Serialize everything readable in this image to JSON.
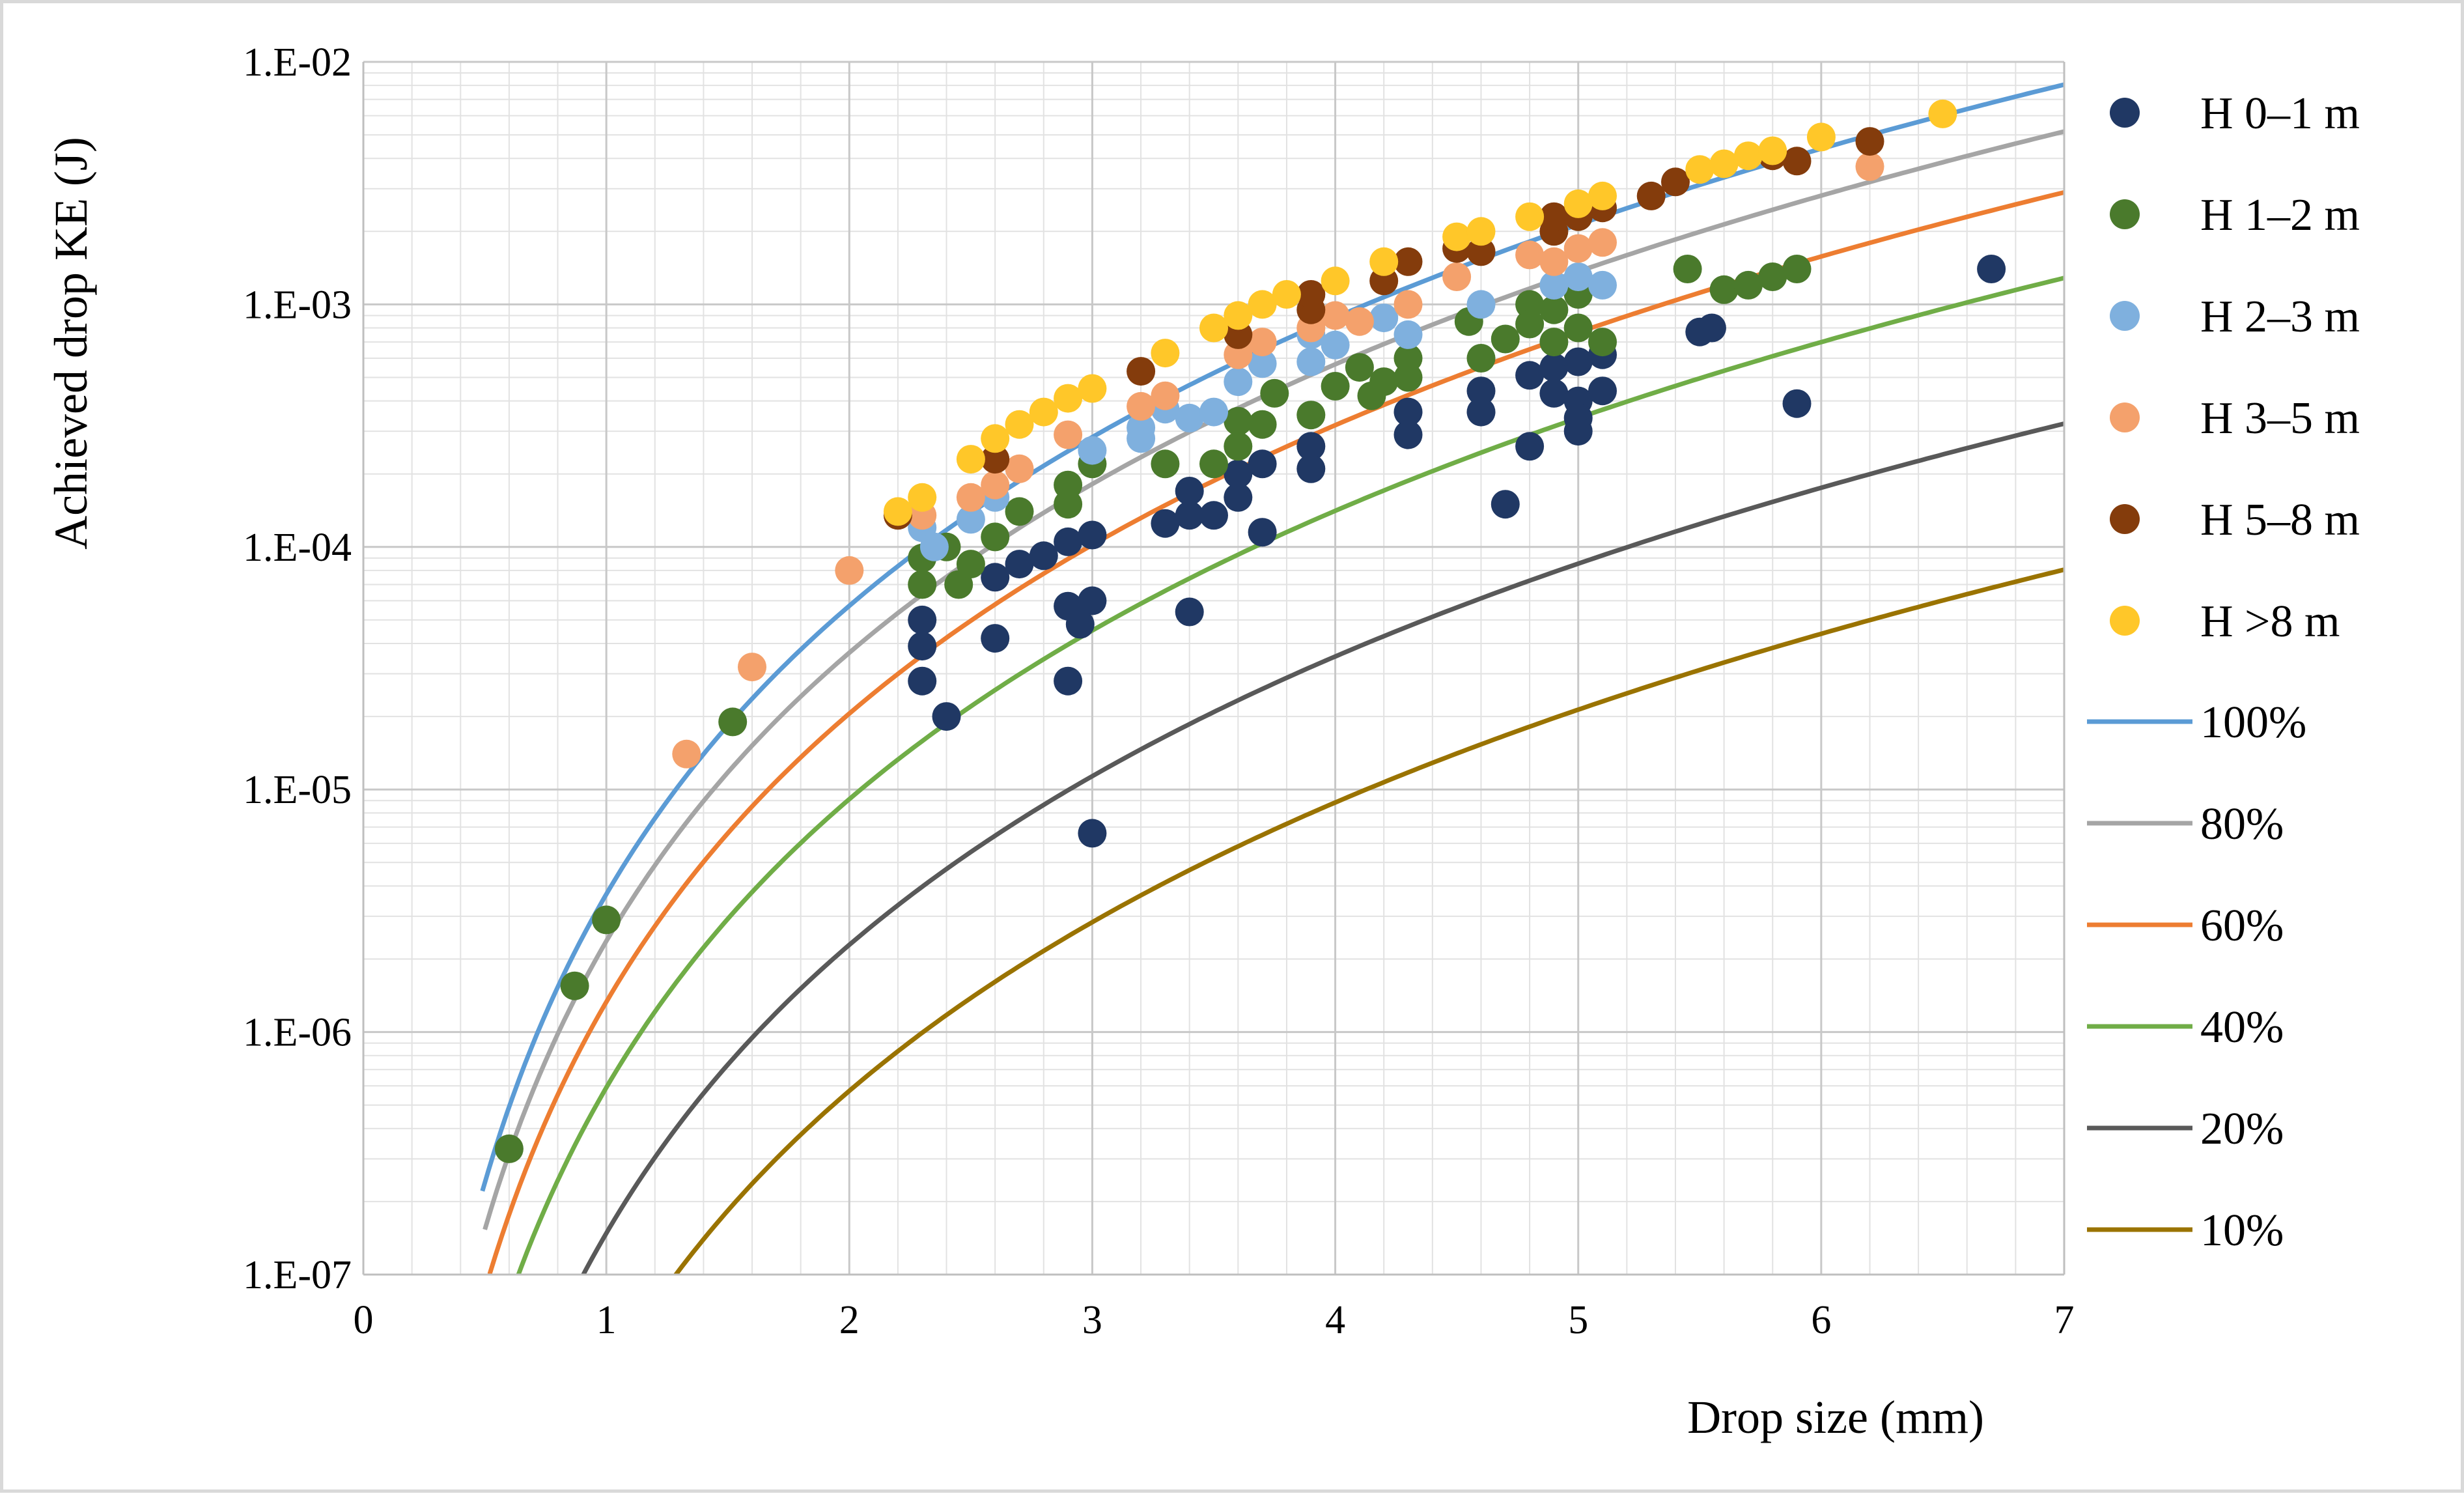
{
  "chart_data": {
    "type": "scatter",
    "xlabel": "Drop size (mm)",
    "ylabel": "Achieved drop KE (J)",
    "xlim": [
      0,
      7
    ],
    "ylim_log10": [
      -7,
      -2
    ],
    "x_ticks": [
      0,
      1,
      2,
      3,
      4,
      5,
      6,
      7
    ],
    "x_tick_labels": [
      "0",
      "1",
      "2",
      "3",
      "4",
      "5",
      "6",
      "7"
    ],
    "y_ticks_log10": [
      -7,
      -6,
      -5,
      -4,
      -3,
      -2
    ],
    "y_tick_labels": [
      "1.E-07",
      "1.E-06",
      "1.E-05",
      "1.E-04",
      "1.E-03",
      "1.E-02"
    ],
    "grid": true,
    "legend_position": "right",
    "scatter_series": [
      {
        "name": "H 0–1 m",
        "color": "#203864",
        "points": [
          [
            2.3,
            5e-05
          ],
          [
            2.3,
            3.9e-05
          ],
          [
            2.3,
            2.8e-05
          ],
          [
            2.4,
            2e-05
          ],
          [
            2.6,
            7.5e-05
          ],
          [
            2.6,
            4.2e-05
          ],
          [
            2.7,
            8.5e-05
          ],
          [
            2.8,
            9.2e-05
          ],
          [
            2.9,
            0.000105
          ],
          [
            2.9,
            5.7e-05
          ],
          [
            2.9,
            2.8e-05
          ],
          [
            3.0,
            0.000112
          ],
          [
            3.0,
            6e-05
          ],
          [
            2.95,
            4.8e-05
          ],
          [
            3.0,
            6.6e-06
          ],
          [
            3.3,
            0.000125
          ],
          [
            3.4,
            0.00017
          ],
          [
            3.4,
            0.000135
          ],
          [
            3.4,
            5.4e-05
          ],
          [
            3.5,
            0.000135
          ],
          [
            3.6,
            0.0002
          ],
          [
            3.6,
            0.00016
          ],
          [
            3.7,
            0.000115
          ],
          [
            3.7,
            0.00022
          ],
          [
            3.9,
            0.00026
          ],
          [
            3.9,
            0.00021
          ],
          [
            4.3,
            0.00036
          ],
          [
            4.3,
            0.00029
          ],
          [
            4.6,
            0.00044
          ],
          [
            4.6,
            0.00036
          ],
          [
            4.7,
            0.00015
          ],
          [
            4.8,
            0.00051
          ],
          [
            4.8,
            0.00026
          ],
          [
            4.9,
            0.00055
          ],
          [
            4.9,
            0.00043
          ],
          [
            5.0,
            0.00058
          ],
          [
            5.0,
            0.0004
          ],
          [
            5.0,
            0.00034
          ],
          [
            5.0,
            0.0003
          ],
          [
            5.1,
            0.00062
          ],
          [
            5.1,
            0.00044
          ],
          [
            5.5,
            0.00077
          ],
          [
            5.55,
            0.0008
          ],
          [
            5.9,
            0.00039
          ],
          [
            6.7,
            0.0014
          ]
        ]
      },
      {
        "name": "H 1–2 m",
        "color": "#4a7a2c",
        "points": [
          [
            0.6,
            3.3e-07
          ],
          [
            0.87,
            1.55e-06
          ],
          [
            1.0,
            2.9e-06
          ],
          [
            1.52,
            1.9e-05
          ],
          [
            2.3,
            9e-05
          ],
          [
            2.3,
            7e-05
          ],
          [
            2.4,
            0.0001
          ],
          [
            2.45,
            7e-05
          ],
          [
            2.5,
            8.5e-05
          ],
          [
            2.6,
            0.00011
          ],
          [
            2.7,
            0.00014
          ],
          [
            2.9,
            0.00015
          ],
          [
            2.9,
            0.00018
          ],
          [
            3.0,
            0.00022
          ],
          [
            3.3,
            0.00022
          ],
          [
            3.5,
            0.00022
          ],
          [
            3.6,
            0.00026
          ],
          [
            3.6,
            0.00033
          ],
          [
            3.7,
            0.00032
          ],
          [
            3.75,
            0.00043
          ],
          [
            3.9,
            0.00035
          ],
          [
            4.0,
            0.00046
          ],
          [
            4.1,
            0.00055
          ],
          [
            4.15,
            0.00042
          ],
          [
            4.2,
            0.00048
          ],
          [
            4.3,
            0.0005
          ],
          [
            4.3,
            0.0006
          ],
          [
            4.55,
            0.00085
          ],
          [
            4.6,
            0.0006
          ],
          [
            4.7,
            0.00072
          ],
          [
            4.8,
            0.001
          ],
          [
            4.8,
            0.00083
          ],
          [
            4.9,
            0.00095
          ],
          [
            4.9,
            0.0007
          ],
          [
            5.0,
            0.0008
          ],
          [
            5.0,
            0.0011
          ],
          [
            5.1,
            0.0007
          ],
          [
            5.45,
            0.0014
          ],
          [
            5.6,
            0.00115
          ],
          [
            5.7,
            0.0012
          ],
          [
            5.8,
            0.0013
          ],
          [
            5.9,
            0.0014
          ]
        ]
      },
      {
        "name": "H 2–3 m",
        "color": "#7fb0de",
        "points": [
          [
            2.3,
            0.00012
          ],
          [
            2.35,
            0.0001
          ],
          [
            2.5,
            0.00013
          ],
          [
            2.6,
            0.00016
          ],
          [
            3.0,
            0.00025
          ],
          [
            3.2,
            0.00028
          ],
          [
            3.2,
            0.00031
          ],
          [
            3.3,
            0.00037
          ],
          [
            3.4,
            0.00034
          ],
          [
            3.5,
            0.00036
          ],
          [
            3.6,
            0.00048
          ],
          [
            3.7,
            0.00057
          ],
          [
            3.9,
            0.00058
          ],
          [
            3.9,
            0.00075
          ],
          [
            4.0,
            0.00068
          ],
          [
            4.2,
            0.00088
          ],
          [
            4.3,
            0.00075
          ],
          [
            4.6,
            0.001
          ],
          [
            4.9,
            0.0012
          ],
          [
            5.0,
            0.0013
          ],
          [
            5.1,
            0.0012
          ]
        ]
      },
      {
        "name": "H 3–5 m",
        "color": "#f4a16c",
        "points": [
          [
            1.33,
            1.4e-05
          ],
          [
            1.6,
            3.2e-05
          ],
          [
            2.0,
            8e-05
          ],
          [
            2.3,
            0.000135
          ],
          [
            2.5,
            0.00016
          ],
          [
            2.6,
            0.00018
          ],
          [
            2.7,
            0.00021
          ],
          [
            2.9,
            0.00029
          ],
          [
            3.2,
            0.00038
          ],
          [
            3.3,
            0.00042
          ],
          [
            3.6,
            0.00062
          ],
          [
            3.7,
            0.0007
          ],
          [
            3.9,
            0.0008
          ],
          [
            4.0,
            0.0009
          ],
          [
            4.1,
            0.00085
          ],
          [
            4.3,
            0.001
          ],
          [
            4.5,
            0.0013
          ],
          [
            4.8,
            0.0016
          ],
          [
            4.9,
            0.0015
          ],
          [
            5.0,
            0.0017
          ],
          [
            5.1,
            0.0018
          ],
          [
            6.2,
            0.0037
          ]
        ]
      },
      {
        "name": "H 5–8 m",
        "color": "#843c0c",
        "points": [
          [
            2.2,
            0.000135
          ],
          [
            2.6,
            0.00023
          ],
          [
            3.2,
            0.00053
          ],
          [
            3.6,
            0.00075
          ],
          [
            3.9,
            0.00095
          ],
          [
            3.9,
            0.0011
          ],
          [
            4.2,
            0.00125
          ],
          [
            4.3,
            0.0015
          ],
          [
            4.5,
            0.0017
          ],
          [
            4.6,
            0.00165
          ],
          [
            4.9,
            0.002
          ],
          [
            4.9,
            0.0023
          ],
          [
            5.0,
            0.0023
          ],
          [
            5.1,
            0.0025
          ],
          [
            5.3,
            0.0028
          ],
          [
            5.4,
            0.0032
          ],
          [
            5.8,
            0.0041
          ],
          [
            5.9,
            0.0039
          ],
          [
            6.2,
            0.0047
          ]
        ]
      },
      {
        "name": "H >8 m",
        "color": "#ffc729",
        "points": [
          [
            2.2,
            0.00014
          ],
          [
            2.3,
            0.00016
          ],
          [
            2.5,
            0.00023
          ],
          [
            2.6,
            0.00028
          ],
          [
            2.7,
            0.00032
          ],
          [
            2.8,
            0.00036
          ],
          [
            2.9,
            0.00041
          ],
          [
            3.0,
            0.00045
          ],
          [
            3.3,
            0.00063
          ],
          [
            3.5,
            0.0008
          ],
          [
            3.6,
            0.0009
          ],
          [
            3.7,
            0.001
          ],
          [
            3.8,
            0.0011
          ],
          [
            4.0,
            0.00125
          ],
          [
            4.2,
            0.0015
          ],
          [
            4.5,
            0.0019
          ],
          [
            4.6,
            0.002
          ],
          [
            4.8,
            0.0023
          ],
          [
            5.0,
            0.0026
          ],
          [
            5.1,
            0.0028
          ],
          [
            5.5,
            0.0036
          ],
          [
            5.6,
            0.0038
          ],
          [
            5.7,
            0.0041
          ],
          [
            5.8,
            0.0043
          ],
          [
            6.0,
            0.0049
          ],
          [
            6.5,
            0.0061
          ]
        ]
      }
    ],
    "line_series": [
      {
        "name": "100%",
        "color": "#5b9bd5",
        "ke_at_1mm": 3.7e-06,
        "exponent": 3.95,
        "x_start": 0.49
      },
      {
        "name": "80%",
        "color": "#a5a5a5",
        "ke_at_1mm": 2.37e-06,
        "exponent": 3.95,
        "x_start": 0.5
      },
      {
        "name": "60%",
        "color": "#ed7d31",
        "ke_at_1mm": 1.33e-06,
        "exponent": 3.95,
        "x_start": 0.52
      },
      {
        "name": "40%",
        "color": "#70ad47",
        "ke_at_1mm": 5.9e-07,
        "exponent": 3.95,
        "x_start": 0.6
      },
      {
        "name": "20%",
        "color": "#595959",
        "ke_at_1mm": 1.48e-07,
        "exponent": 3.95,
        "x_start": 0.87
      },
      {
        "name": "10%",
        "color": "#9a7300",
        "ke_at_1mm": 3.7e-08,
        "exponent": 3.95,
        "x_start": 1.2
      }
    ]
  }
}
